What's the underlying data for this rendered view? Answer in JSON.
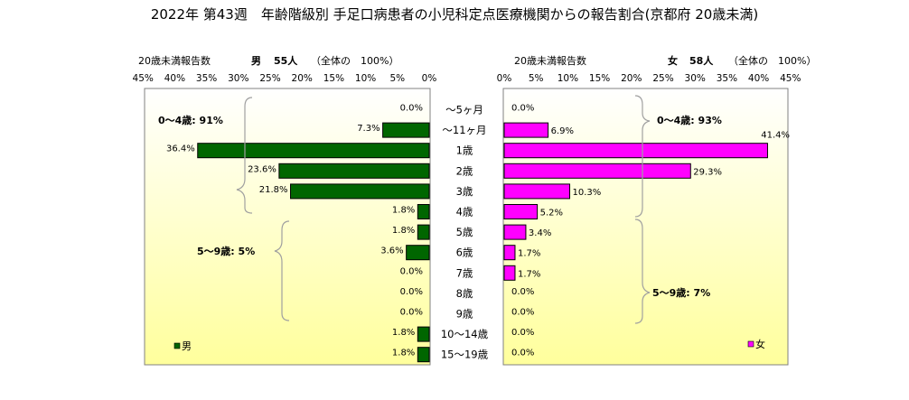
{
  "title": "2022年 第43週　年齢階級別 手足口病患者の小児科定点医療機関からの報告割合(京都府 20歳未満)",
  "colors": {
    "male": "#006600",
    "female": "#ff00ff",
    "bg_top": "#ffffff",
    "bg_bottom": "#ffff9c"
  },
  "chart_data": [
    {
      "type": "bar",
      "orientation": "horizontal",
      "direction": "right-to-left",
      "header": {
        "prefix": "20歳未満報告数",
        "sex": "男",
        "count": "55人",
        "whole": "（全体の　100%）"
      },
      "xlim": [
        0,
        45
      ],
      "xticks": [
        "45%",
        "40%",
        "35%",
        "30%",
        "25%",
        "20%",
        "15%",
        "10%",
        "5%",
        "0%"
      ],
      "categories": [
        "～5ヶ月",
        "～11ヶ月",
        "1歳",
        "2歳",
        "3歳",
        "4歳",
        "5歳",
        "6歳",
        "7歳",
        "8歳",
        "9歳",
        "10～14歳",
        "15～19歳"
      ],
      "series": [
        {
          "name": "男",
          "values": [
            0.0,
            7.3,
            36.4,
            23.6,
            21.8,
            1.8,
            1.8,
            3.6,
            0.0,
            0.0,
            0.0,
            1.8,
            1.8
          ],
          "labels": [
            "0.0%",
            "7.3%",
            "36.4%",
            "23.6%",
            "21.8%",
            "1.8%",
            "1.8%",
            "3.6%",
            "0.0%",
            "0.0%",
            "0.0%",
            "1.8%",
            "1.8%"
          ]
        }
      ],
      "group_annotations": [
        "0～4歳: 91%",
        "5～9歳: 5%"
      ],
      "legend": {
        "label": "男",
        "position": "bottom-left"
      },
      "grid": false
    },
    {
      "type": "bar",
      "orientation": "horizontal",
      "direction": "left-to-right",
      "header": {
        "prefix": "20歳未満報告数",
        "sex": "女",
        "count": "58人",
        "whole": "（全体の　100%）"
      },
      "xlim": [
        0,
        45
      ],
      "xticks": [
        "0%",
        "5%",
        "10%",
        "15%",
        "20%",
        "25%",
        "30%",
        "35%",
        "40%",
        "45%"
      ],
      "categories": [
        "～5ヶ月",
        "～11ヶ月",
        "1歳",
        "2歳",
        "3歳",
        "4歳",
        "5歳",
        "6歳",
        "7歳",
        "8歳",
        "9歳",
        "10～14歳",
        "15～19歳"
      ],
      "series": [
        {
          "name": "女",
          "values": [
            0.0,
            6.9,
            41.4,
            29.3,
            10.3,
            5.2,
            3.4,
            1.7,
            1.7,
            0.0,
            0.0,
            0.0,
            0.0
          ],
          "labels": [
            "0.0%",
            "6.9%",
            "41.4%",
            "29.3%",
            "10.3%",
            "5.2%",
            "3.4%",
            "1.7%",
            "1.7%",
            "0.0%",
            "0.0%",
            "0.0%",
            "0.0%"
          ]
        }
      ],
      "group_annotations": [
        "0～4歳: 93%",
        "5～9歳: 7%"
      ],
      "legend": {
        "label": "女",
        "position": "bottom-right"
      },
      "grid": false
    }
  ]
}
